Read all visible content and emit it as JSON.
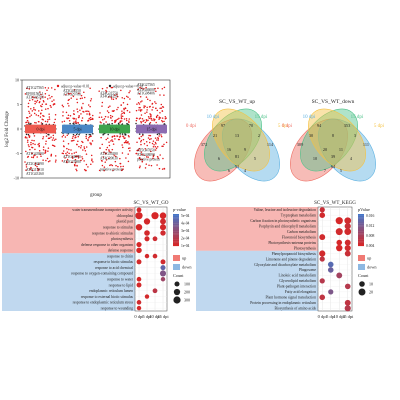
{
  "chart_data": [
    {
      "type": "scatter",
      "panel": "volcano-manhattan",
      "ylabel": "log2 Fold Change",
      "xlabel": "group",
      "ylim": [
        -10,
        10
      ],
      "yticks": [
        -10,
        -5,
        0,
        5,
        10
      ],
      "legend": [
        {
          "label": "adjust p-value<0.01",
          "color": "#e31a1c"
        },
        {
          "label": "adjust p-value>=0.01",
          "color": "#222222"
        }
      ],
      "groups": [
        {
          "name": "0 dpi",
          "color": "#ee5a4f"
        },
        {
          "name": "5 dpi",
          "color": "#4a86c5"
        },
        {
          "name": "10 dpi",
          "color": "#3fa34d"
        },
        {
          "name": "15 dpi",
          "color": "#8b6bb1"
        }
      ],
      "gene_labels": [
        {
          "text": "AT1G27565",
          "group": 0,
          "value": 8.2
        },
        {
          "text": "EF001565.1",
          "group": 0,
          "value": 6.9
        },
        {
          "text": "AT3G46700",
          "group": 0,
          "value": 6.2
        },
        {
          "text": "AT3G44550",
          "group": 1,
          "value": 7.6
        },
        {
          "text": "AT5G29780",
          "group": 1,
          "value": 6.8
        },
        {
          "text": "AT4G31550",
          "group": 2,
          "value": 7.0
        },
        {
          "text": "AT1G27565",
          "group": 3,
          "value": 8.8
        },
        {
          "text": "AT3G46000",
          "group": 3,
          "value": 7.8
        },
        {
          "text": "AT1G08406",
          "group": 3,
          "value": 7.0
        },
        {
          "text": "AT4G44220",
          "group": 2,
          "value": 6.4
        },
        {
          "text": "AT1G43990",
          "group": 0,
          "value": -5.3
        },
        {
          "text": "AT2G02990",
          "group": 0,
          "value": -7.3
        },
        {
          "text": "AT4G15910",
          "group": 0,
          "value": -8.6
        },
        {
          "text": "AT1G43160",
          "group": 0,
          "value": -9.4
        },
        {
          "text": "AT1G44090",
          "group": 1,
          "value": -5.9
        },
        {
          "text": "AT5G25980",
          "group": 1,
          "value": -6.9
        },
        {
          "text": "AT3G59290",
          "group": 2,
          "value": -5.3
        },
        {
          "text": "AT4G39030",
          "group": 2,
          "value": -6.2
        },
        {
          "text": "AT5G47050",
          "group": 3,
          "value": -4.6
        },
        {
          "text": "AT3G48090",
          "group": 3,
          "value": -5.5
        },
        {
          "text": "putative protein",
          "group": 3,
          "value": -6.4
        },
        {
          "text": "putative protein",
          "group": 2,
          "value": -8.5
        }
      ]
    },
    {
      "type": "venn",
      "title": "SC_VS_WT_up",
      "sets": [
        {
          "name": "0 dpi",
          "color": "#ee6a5f"
        },
        {
          "name": "10 dpi",
          "color": "#5bb0e0"
        },
        {
          "name": "15 dpi",
          "color": "#4ec28a"
        },
        {
          "name": "5 dpi",
          "color": "#f5c242"
        }
      ],
      "values": [
        "372",
        "97",
        "70",
        "114",
        "21",
        "13",
        "2",
        "6",
        "5",
        "16",
        "9",
        "51",
        "6",
        "4",
        "81"
      ]
    },
    {
      "type": "venn",
      "title": "SC_VS_WT_down",
      "sets": [
        {
          "name": "0 dpi",
          "color": "#ee6a5f"
        },
        {
          "name": "10 dpi",
          "color": "#5bb0e0"
        },
        {
          "name": "15 dpi",
          "color": "#4ec28a"
        },
        {
          "name": "5 dpi",
          "color": "#f5c242"
        }
      ],
      "values": [
        "309",
        "94",
        "353",
        "111",
        "30",
        "8",
        "3",
        "10",
        "4",
        "20",
        "11",
        "64",
        "7",
        "5",
        "39"
      ]
    },
    {
      "type": "bubble",
      "title": "SC_VS_WT_GO",
      "x": [
        "0 dpi",
        "5 dpi",
        "10 dpi",
        "15 dpi"
      ],
      "terms": [
        "water transmembrane transporter activity",
        "chloroplast",
        "plastid part",
        "response to stimulus",
        "response to abiotic stimulus",
        "photosynthesis",
        "defense response to other organism",
        "defense response",
        "response to chitin",
        "response to biotic stimulus",
        "response to acid chemical",
        "response to oxygen-containing compound",
        "response to water",
        "response to lipid",
        "endoplasmic reticulum lumen",
        "response to external biotic stimulus",
        "response to endoplasmic reticulum stress",
        "response to wounding"
      ],
      "groups": [
        {
          "name": "up",
          "color": "#f07a74",
          "rows": 8
        },
        {
          "name": "down",
          "color": "#8db8e2",
          "rows": 10
        }
      ],
      "pvalue_ticks": [
        "5e-04",
        "4e-04",
        "3e-04",
        "2e-04",
        "1e-04"
      ],
      "count_ticks": [
        100,
        200,
        300
      ],
      "color_legend_title": "p-value",
      "size_legend_title": "Count",
      "points": [
        {
          "x": 0,
          "y": 0,
          "count": 80,
          "p": 2e-05
        },
        {
          "x": 0,
          "y": 1,
          "count": 300,
          "p": 1e-05
        },
        {
          "x": 2,
          "y": 1,
          "count": 300,
          "p": 1e-05
        },
        {
          "x": 3,
          "y": 1,
          "count": 220,
          "p": 1e-05
        },
        {
          "x": 1,
          "y": 2,
          "count": 200,
          "p": 2e-05
        },
        {
          "x": 3,
          "y": 2,
          "count": 160,
          "p": 3e-05
        },
        {
          "x": 0,
          "y": 3,
          "count": 220,
          "p": 1e-05
        },
        {
          "x": 3,
          "y": 3,
          "count": 180,
          "p": 2e-05
        },
        {
          "x": 1,
          "y": 4,
          "count": 140,
          "p": 2e-05
        },
        {
          "x": 3,
          "y": 4,
          "count": 120,
          "p": 3e-05
        },
        {
          "x": 1,
          "y": 5,
          "count": 100,
          "p": 2e-05
        },
        {
          "x": 2,
          "y": 5,
          "count": 80,
          "p": 4e-05
        },
        {
          "x": 0,
          "y": 6,
          "count": 110,
          "p": 1e-05
        },
        {
          "x": 0,
          "y": 7,
          "count": 130,
          "p": 1e-05
        },
        {
          "x": 1,
          "y": 8,
          "count": 60,
          "p": 2e-05
        },
        {
          "x": 2,
          "y": 8,
          "count": 70,
          "p": 3e-05
        },
        {
          "x": 0,
          "y": 9,
          "count": 90,
          "p": 2e-05
        },
        {
          "x": 3,
          "y": 9,
          "count": 90,
          "p": 3e-05
        },
        {
          "x": 3,
          "y": 10,
          "count": 100,
          "p": 0.0004
        },
        {
          "x": 3,
          "y": 11,
          "count": 180,
          "p": 0.0003
        },
        {
          "x": 0,
          "y": 12,
          "count": 70,
          "p": 2e-05
        },
        {
          "x": 3,
          "y": 12,
          "count": 60,
          "p": 0.0002
        },
        {
          "x": 0,
          "y": 13,
          "count": 90,
          "p": 2e-05
        },
        {
          "x": 2,
          "y": 14,
          "count": 80,
          "p": 0.0001
        },
        {
          "x": 1,
          "y": 15,
          "count": 60,
          "p": 2e-05
        },
        {
          "x": 0,
          "y": 16,
          "count": 70,
          "p": 3e-05
        },
        {
          "x": 0,
          "y": 17,
          "count": 60,
          "p": 2e-05
        }
      ]
    },
    {
      "type": "bubble",
      "title": "SC_VS_WT_KEGG",
      "x": [
        "0 dpi",
        "5 dpi",
        "10 dpi",
        "15 dpi"
      ],
      "terms": [
        "Valine, leucine and isoleucine degradation",
        "Tryptophan metabolism",
        "Carbon fixation in photosynthetic organisms",
        "Porphyrin and chlorophyll metabolism",
        "Carbon metabolism",
        "Flavonoid biosynthesis",
        "Photosynthesis-antenna proteins",
        "Photosynthesis",
        "Phenylpropanoid biosynthesis",
        "Limonene and pinene degradation",
        "Glyoxylate and dicarboxylate metabolism",
        "Phagosome",
        "Linoleic acid metabolism",
        "Glycerolipid metabolism",
        "Plant-pathogen interaction",
        "Fatty acid elongation",
        "Plant hormone signal transduction",
        "Protein processing in endoplasmic reticulum",
        "Biosynthesis of amino acids"
      ],
      "groups": [
        {
          "name": "up",
          "color": "#f07a74",
          "rows": 8
        },
        {
          "name": "down",
          "color": "#8db8e2",
          "rows": 11
        }
      ],
      "pvalue_ticks": [
        "0.016",
        "0.012",
        "0.008",
        "0.004"
      ],
      "count_ticks": [
        10,
        20
      ],
      "color_legend_title": "pValue",
      "size_legend_title": "Count",
      "points": [
        {
          "x": 0,
          "y": 0,
          "count": 8,
          "p": 0.002
        },
        {
          "x": 0,
          "y": 1,
          "count": 10,
          "p": 0.001
        },
        {
          "x": 2,
          "y": 2,
          "count": 22,
          "p": 0.0005
        },
        {
          "x": 3,
          "y": 2,
          "count": 18,
          "p": 0.001
        },
        {
          "x": 3,
          "y": 3,
          "count": 14,
          "p": 0.002
        },
        {
          "x": 2,
          "y": 4,
          "count": 20,
          "p": 0.001
        },
        {
          "x": 3,
          "y": 4,
          "count": 18,
          "p": 0.001
        },
        {
          "x": 0,
          "y": 5,
          "count": 12,
          "p": 0.001
        },
        {
          "x": 2,
          "y": 6,
          "count": 10,
          "p": 0.0005
        },
        {
          "x": 3,
          "y": 6,
          "count": 12,
          "p": 0.001
        },
        {
          "x": 2,
          "y": 7,
          "count": 16,
          "p": 0.0005
        },
        {
          "x": 3,
          "y": 7,
          "count": 14,
          "p": 0.001
        },
        {
          "x": 0,
          "y": 8,
          "count": 14,
          "p": 0.001
        },
        {
          "x": 3,
          "y": 8,
          "count": 12,
          "p": 0.002
        },
        {
          "x": 0,
          "y": 9,
          "count": 8,
          "p": 0.003
        },
        {
          "x": 1,
          "y": 10,
          "count": 10,
          "p": 0.014
        },
        {
          "x": 1,
          "y": 11,
          "count": 10,
          "p": 0.012
        },
        {
          "x": 2,
          "y": 12,
          "count": 12,
          "p": 0.006
        },
        {
          "x": 0,
          "y": 13,
          "count": 8,
          "p": 0.004
        },
        {
          "x": 3,
          "y": 14,
          "count": 10,
          "p": 0.004
        },
        {
          "x": 1,
          "y": 15,
          "count": 8,
          "p": 0.01
        },
        {
          "x": 0,
          "y": 16,
          "count": 10,
          "p": 0.003
        },
        {
          "x": 3,
          "y": 17,
          "count": 12,
          "p": 0.003
        },
        {
          "x": 3,
          "y": 18,
          "count": 14,
          "p": 0.004
        }
      ]
    }
  ]
}
